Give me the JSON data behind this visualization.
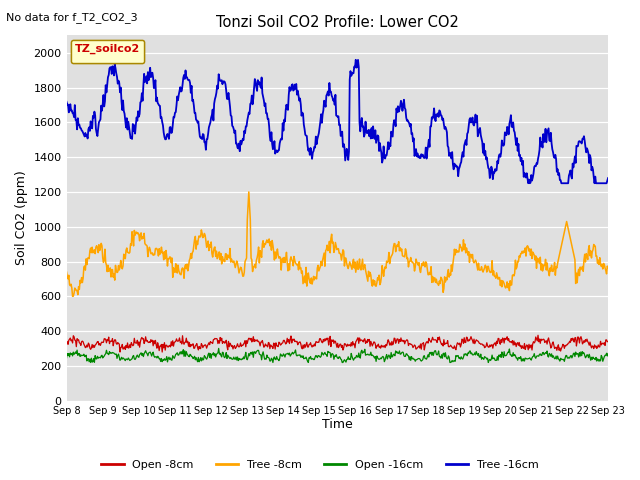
{
  "title": "Tonzi Soil CO2 Profile: Lower CO2",
  "subtitle": "No data for f_T2_CO2_3",
  "ylabel": "Soil CO2 (ppm)",
  "xlabel": "Time",
  "ylim": [
    0,
    2100
  ],
  "legend_box_label": "TZ_soilco2",
  "legend_entries": [
    "Open -8cm",
    "Tree -8cm",
    "Open -16cm",
    "Tree -16cm"
  ],
  "legend_colors": [
    "#cc0000",
    "#ffa500",
    "#008800",
    "#0000cc"
  ],
  "background_color": "#e0e0e0",
  "x_tick_labels": [
    "Sep 8",
    "Sep 9",
    "Sep 10",
    "Sep 11",
    "Sep 12",
    "Sep 13",
    "Sep 14",
    "Sep 15",
    "Sep 16",
    "Sep 17",
    "Sep 18",
    "Sep 19",
    "Sep 20",
    "Sep 21",
    "Sep 22",
    "Sep 23"
  ],
  "yticks": [
    0,
    200,
    400,
    600,
    800,
    1000,
    1200,
    1400,
    1600,
    1800,
    2000
  ]
}
